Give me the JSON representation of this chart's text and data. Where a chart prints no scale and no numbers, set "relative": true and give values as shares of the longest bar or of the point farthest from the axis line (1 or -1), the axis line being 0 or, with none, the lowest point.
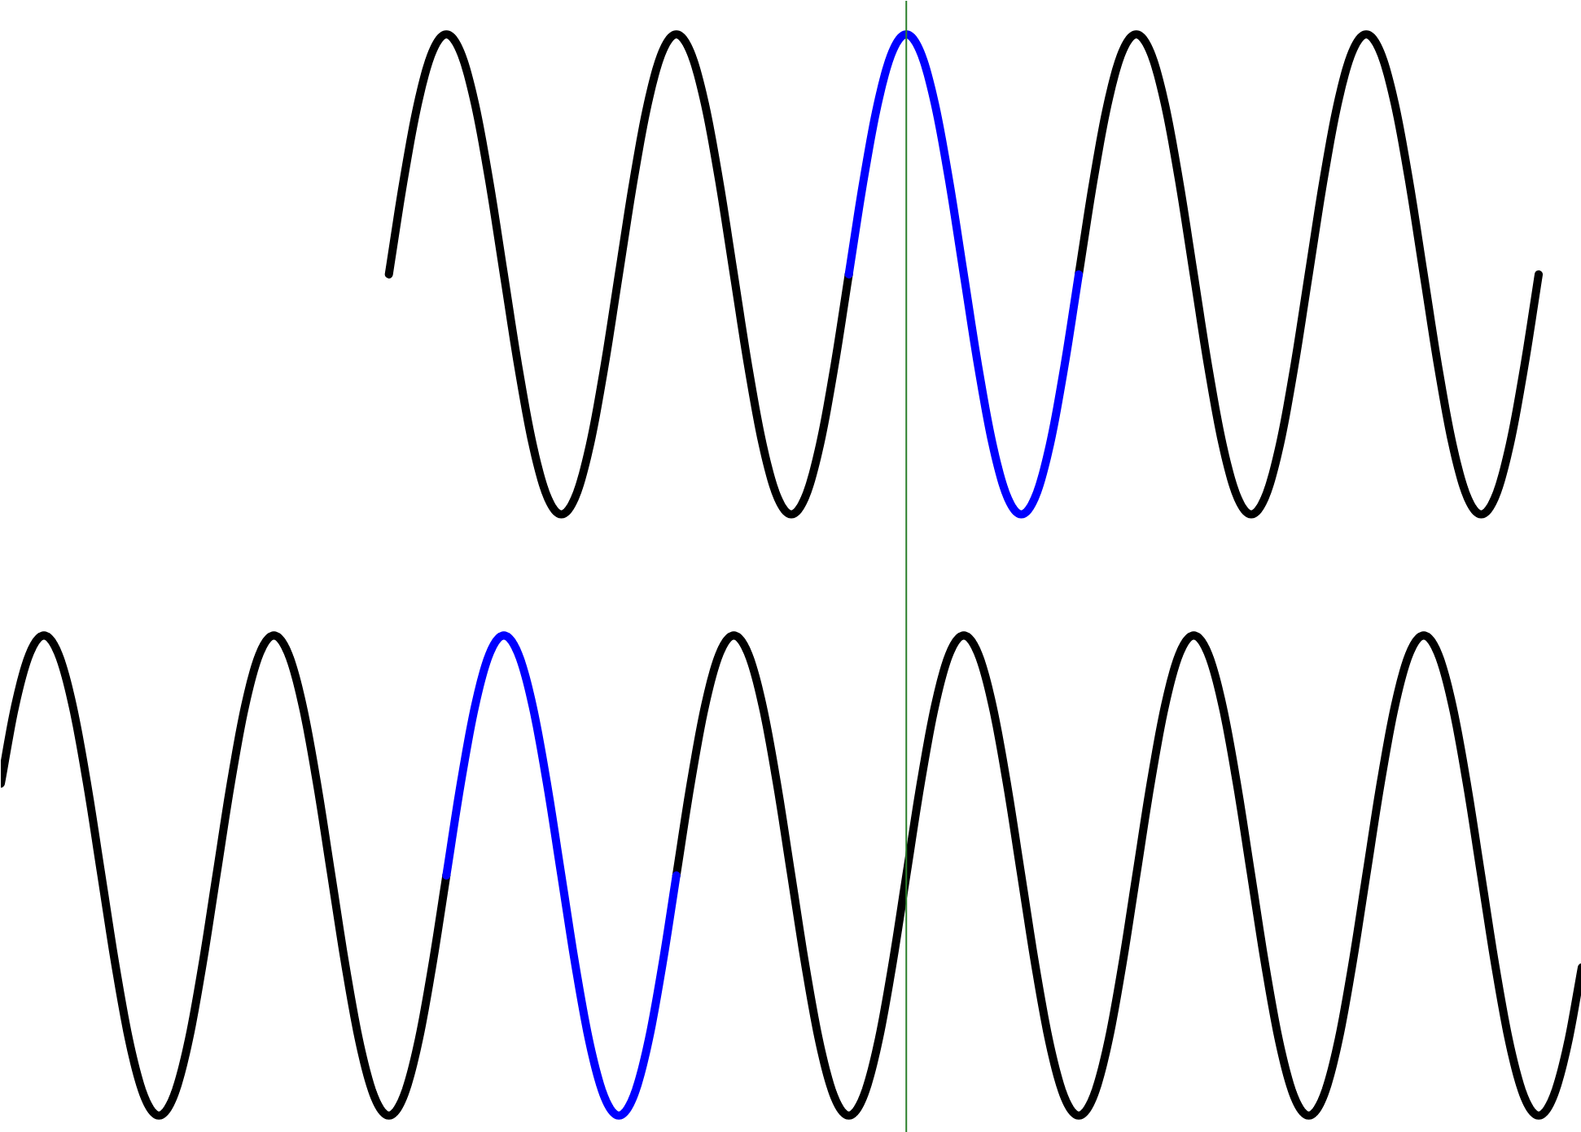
{
  "chart_data": {
    "type": "line",
    "relative": true,
    "categories": [
      null,
      null,
      null,
      null,
      null,
      null,
      null,
      null,
      null,
      null,
      null,
      null,
      null,
      null,
      null,
      null,
      null,
      null,
      null,
      null,
      null,
      null,
      null,
      null,
      null,
      null,
      null,
      null,
      null,
      null,
      null,
      null,
      null,
      null,
      null,
      null,
      null,
      null,
      null,
      null,
      null,
      null,
      null,
      null,
      null,
      null,
      null,
      null,
      null,
      null,
      null,
      null,
      null,
      null,
      null,
      null,
      null,
      null,
      null,
      null,
      null,
      null,
      null,
      null,
      null,
      null,
      null,
      null,
      null,
      null,
      null,
      null,
      null,
      null,
      null,
      null,
      null,
      null,
      null,
      null,
      null,
      null,
      null,
      null,
      null,
      null,
      null,
      null,
      null,
      null,
      null,
      null,
      null,
      null,
      null,
      null,
      null,
      null,
      null,
      null,
      null,
      null,
      null,
      null,
      null,
      null,
      null,
      null,
      null,
      null,
      null
    ],
    "series": [
      {
        "color": "#000000",
        "values": [
          0.307,
          0.379,
          0.427,
          0.444,
          0.427,
          0.379,
          0.307,
          0.222,
          0.137,
          0.065,
          0.017,
          0,
          0.017,
          0.065,
          0.137,
          0.222,
          0.307,
          0.379,
          0.427,
          0.444,
          0.427,
          0.379,
          0.307,
          0.222,
          0.137,
          0.065,
          0.017,
          0,
          0.017,
          0.065,
          0.137,
          0.222,
          null,
          null,
          null,
          null,
          null,
          null,
          null,
          null,
          null,
          null,
          null,
          null,
          null,
          null,
          null,
          0.222,
          0.307,
          0.379,
          0.427,
          0.444,
          0.427,
          0.379,
          0.307,
          0.222,
          0.137,
          0.065,
          0.017,
          0,
          0.017,
          0.065,
          0.137,
          0.222,
          0.307,
          0.379,
          0.427,
          0.444,
          0.427,
          0.379,
          0.307,
          0.222,
          0.137,
          0.065,
          0.017,
          0,
          0.017,
          0.065,
          0.137,
          0.222,
          0.307,
          0.379,
          0.427,
          0.444,
          0.427,
          0.379,
          0.307,
          0.222,
          0.137,
          0.065,
          0.017,
          0,
          0.017,
          0.065,
          0.137,
          0.222,
          0.307,
          0.379,
          0.427,
          0.444,
          0.427,
          0.379,
          0.307,
          0.222,
          0.137,
          0.065,
          0.017,
          0,
          0.017,
          0.065,
          0.137
        ]
      },
      {
        "color": "#0000ff",
        "values": [
          null,
          null,
          null,
          null,
          null,
          null,
          null,
          null,
          null,
          null,
          null,
          null,
          null,
          null,
          null,
          null,
          null,
          null,
          null,
          null,
          null,
          null,
          null,
          null,
          null,
          null,
          null,
          null,
          null,
          null,
          null,
          0.222,
          0.307,
          0.379,
          0.427,
          0.444,
          0.427,
          0.379,
          0.307,
          0.222,
          0.137,
          0.065,
          0.017,
          0,
          0.017,
          0.065,
          0.137,
          0.222,
          null,
          null,
          null,
          null,
          null,
          null,
          null,
          null,
          null,
          null,
          null,
          null,
          null,
          null,
          null,
          null,
          null,
          null,
          null,
          null,
          null,
          null,
          null,
          null,
          null,
          null,
          null,
          null,
          null,
          null,
          null,
          null,
          null,
          null,
          null,
          null,
          null,
          null,
          null,
          null,
          null,
          null,
          null,
          null,
          null,
          null,
          null,
          null,
          null,
          null,
          null,
          null,
          null,
          null,
          null,
          null,
          null,
          null,
          null,
          null,
          null,
          null,
          null
        ]
      },
      {
        "color": "#000000",
        "values": [
          null,
          null,
          null,
          null,
          null,
          null,
          null,
          null,
          null,
          null,
          null,
          null,
          null,
          null,
          null,
          null,
          null,
          null,
          null,
          null,
          null,
          null,
          null,
          null,
          null,
          null,
          null,
          0.778,
          0.863,
          0.935,
          0.983,
          1,
          0.983,
          0.935,
          0.863,
          0.778,
          0.693,
          0.621,
          0.573,
          0.556,
          0.573,
          0.621,
          0.693,
          0.778,
          0.863,
          0.935,
          0.983,
          1,
          0.983,
          0.935,
          0.863,
          0.778,
          0.693,
          0.621,
          0.573,
          0.556,
          0.573,
          0.621,
          0.693,
          0.778,
          null,
          null,
          null,
          null,
          null,
          null,
          null,
          null,
          null,
          null,
          null,
          null,
          null,
          null,
          null,
          0.778,
          0.863,
          0.935,
          0.983,
          1,
          0.983,
          0.935,
          0.863,
          0.778,
          0.693,
          0.621,
          0.573,
          0.556,
          0.573,
          0.621,
          0.693,
          0.778,
          0.863,
          0.935,
          0.983,
          1,
          0.983,
          0.935,
          0.863,
          0.778,
          0.693,
          0.621,
          0.573,
          0.556,
          0.573,
          0.621,
          0.693,
          0.778,
          null,
          null,
          null
        ]
      },
      {
        "color": "#0000ff",
        "values": [
          null,
          null,
          null,
          null,
          null,
          null,
          null,
          null,
          null,
          null,
          null,
          null,
          null,
          null,
          null,
          null,
          null,
          null,
          null,
          null,
          null,
          null,
          null,
          null,
          null,
          null,
          null,
          null,
          null,
          null,
          null,
          null,
          null,
          null,
          null,
          null,
          null,
          null,
          null,
          null,
          null,
          null,
          null,
          null,
          null,
          null,
          null,
          null,
          null,
          null,
          null,
          null,
          null,
          null,
          null,
          null,
          null,
          null,
          null,
          0.778,
          0.863,
          0.935,
          0.983,
          1,
          0.983,
          0.935,
          0.863,
          0.778,
          0.693,
          0.621,
          0.573,
          0.556,
          0.573,
          0.621,
          0.693,
          0.778,
          null,
          null,
          null,
          null,
          null,
          null,
          null,
          null,
          null,
          null,
          null,
          null,
          null,
          null,
          null,
          null,
          null,
          null,
          null,
          null,
          null,
          null,
          null,
          null,
          null,
          null,
          null,
          null,
          null,
          null,
          null,
          null,
          null,
          null,
          null
        ]
      }
    ]
  }
}
